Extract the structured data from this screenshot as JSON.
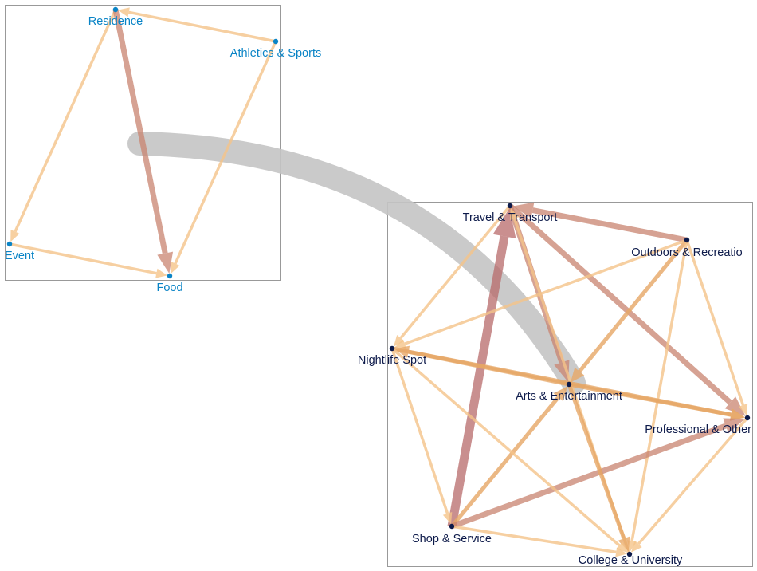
{
  "colors": {
    "group_a_node": "#0a84c6",
    "group_b_node": "#0d1a4a",
    "edge_light": "#f5c48a",
    "edge_mid": "#e7a766",
    "edge_strong": "#d9935a",
    "edge_rust": "#c98470",
    "edge_deep": "#b86a6a",
    "bridge": "#c4c4c4",
    "frame": "#999999"
  },
  "groups": [
    {
      "id": "small",
      "nodes": [
        {
          "id": "residence",
          "label": "Residence"
        },
        {
          "id": "athletics",
          "label": "Athletics & Sports"
        },
        {
          "id": "event",
          "label": "Event"
        },
        {
          "id": "food",
          "label": "Food"
        }
      ],
      "edges": [
        {
          "source": "athletics",
          "target": "residence",
          "weight": 1
        },
        {
          "source": "residence",
          "target": "event",
          "weight": 1
        },
        {
          "source": "residence",
          "target": "food",
          "weight": 3
        },
        {
          "source": "athletics",
          "target": "food",
          "weight": 1
        },
        {
          "source": "event",
          "target": "food",
          "weight": 1
        }
      ]
    },
    {
      "id": "large",
      "nodes": [
        {
          "id": "travel",
          "label": "Travel & Transport"
        },
        {
          "id": "outdoors",
          "label": "Outdoors & Recreatio"
        },
        {
          "id": "nightlife",
          "label": "Nightlife Spot"
        },
        {
          "id": "arts",
          "label": "Arts & Entertainment"
        },
        {
          "id": "professional",
          "label": "Professional & Other"
        },
        {
          "id": "shop",
          "label": "Shop & Service"
        },
        {
          "id": "college",
          "label": "College & University"
        }
      ],
      "edges": [
        {
          "source": "shop",
          "target": "travel",
          "weight": 5
        },
        {
          "source": "outdoors",
          "target": "travel",
          "weight": 3
        },
        {
          "source": "travel",
          "target": "arts",
          "weight": 3
        },
        {
          "source": "travel",
          "target": "professional",
          "weight": 3
        },
        {
          "source": "travel",
          "target": "nightlife",
          "weight": 1
        },
        {
          "source": "college",
          "target": "travel",
          "weight": 1
        },
        {
          "source": "outdoors",
          "target": "arts",
          "weight": 2
        },
        {
          "source": "outdoors",
          "target": "nightlife",
          "weight": 1
        },
        {
          "source": "outdoors",
          "target": "professional",
          "weight": 1
        },
        {
          "source": "outdoors",
          "target": "college",
          "weight": 1
        },
        {
          "source": "arts",
          "target": "nightlife",
          "weight": 2
        },
        {
          "source": "nightlife",
          "target": "professional",
          "weight": 2
        },
        {
          "source": "arts",
          "target": "professional",
          "weight": 2
        },
        {
          "source": "shop",
          "target": "arts",
          "weight": 2
        },
        {
          "source": "shop",
          "target": "professional",
          "weight": 3
        },
        {
          "source": "arts",
          "target": "college",
          "weight": 2
        },
        {
          "source": "nightlife",
          "target": "shop",
          "weight": 1
        },
        {
          "source": "nightlife",
          "target": "college",
          "weight": 1
        },
        {
          "source": "shop",
          "target": "college",
          "weight": 1
        },
        {
          "source": "professional",
          "target": "college",
          "weight": 1
        }
      ]
    }
  ],
  "bridge": {
    "source_group": "small",
    "target_group": "large"
  }
}
